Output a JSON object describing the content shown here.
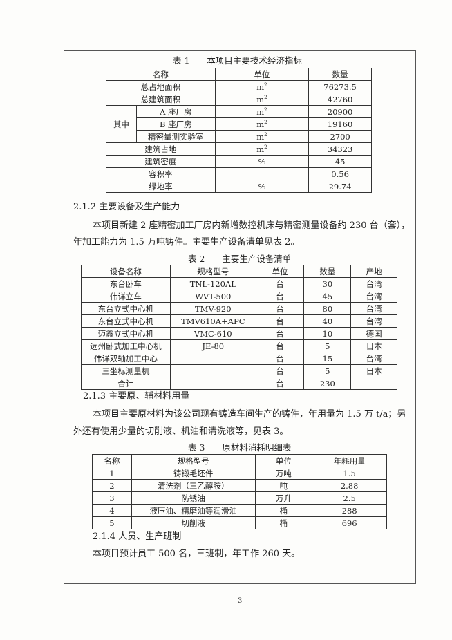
{
  "table1": {
    "caption": "表 1　　本项目主要技术经济指标",
    "headers": [
      "名称",
      "单位",
      "数量"
    ],
    "rows": [
      {
        "name": "总占地面积",
        "unit": "m",
        "sup": "2",
        "value": "76273.5"
      },
      {
        "name": "总建筑面积",
        "unit": "m",
        "sup": "2",
        "value": "42760"
      },
      {
        "group": "其中",
        "name": "A 座厂房",
        "unit": "m",
        "sup": "2",
        "value": "20900"
      },
      {
        "name": "B 座厂房",
        "unit": "m",
        "sup": "2",
        "value": "19160"
      },
      {
        "name": "精密量测实验室",
        "unit": "m",
        "sup": "2",
        "value": "2700"
      },
      {
        "name": "建筑占地",
        "unit": "m",
        "sup": "2",
        "value": "34323"
      },
      {
        "name": "建筑密度",
        "unit": "%",
        "value": "45"
      },
      {
        "name": "容积率",
        "unit": "",
        "value": "0.56"
      },
      {
        "name": "绿地率",
        "unit": "%",
        "value": "29.74"
      }
    ]
  },
  "section212": {
    "heading": "2.1.2 主要设备及生产能力",
    "para_line1": "本项目新建 2 座精密加工厂房内新增数控机床与精密测量设备约 230 台（套），",
    "para_line2": "年加工能力为 1.5 万吨铸件。主要生产设备清单见表 2。"
  },
  "table2": {
    "caption": "表 2　　主要生产设备清单",
    "headers": [
      "设备名称",
      "规格型号",
      "单位",
      "数量",
      "产地"
    ],
    "rows": [
      [
        "东台卧车",
        "TNL-120AL",
        "台",
        "30",
        "台湾"
      ],
      [
        "伟详立车",
        "WVT-500",
        "台",
        "45",
        "台湾"
      ],
      [
        "东台立式中心机",
        "TMV-920",
        "台",
        "80",
        "台湾"
      ],
      [
        "东台立式中心机",
        "TMV610A+APC",
        "台",
        "40",
        "台湾"
      ],
      [
        "迈鑫立式中心机",
        "VMC-610",
        "台",
        "10",
        "德国"
      ],
      [
        "远州卧式加工中心机",
        "JE-80",
        "台",
        "5",
        "日本"
      ],
      [
        "伟详双轴加工中心",
        "",
        "台",
        "15",
        "台湾"
      ],
      [
        "三坐标测量机",
        "",
        "台",
        "5",
        "日本"
      ],
      [
        "合计",
        "",
        "台",
        "230",
        ""
      ]
    ]
  },
  "section213": {
    "heading": "2.1.3 主要原、辅材料用量",
    "para_line1": "本项目主要原材料为该公司现有铸造车间生产的铸件，年用量为 1.5 万 t/a；另",
    "para_line2": "外还有使用少量的切削液、机油和清洗液等，见表 3。"
  },
  "table3": {
    "caption": "表 3　　原材料消耗明细表",
    "headers": [
      "名称",
      "规格型号",
      "单位",
      "年耗用量"
    ],
    "rows": [
      [
        "1",
        "铸锻毛坯件",
        "万吨",
        "1.5"
      ],
      [
        "2",
        "清洗剂（三乙醇胺）",
        "吨",
        "2.88"
      ],
      [
        "3",
        "防锈油",
        "万升",
        "2.5"
      ],
      [
        "4",
        "液压油、精磨油等润滑油",
        "桶",
        "288"
      ],
      [
        "5",
        "切削液",
        "桶",
        "696"
      ]
    ]
  },
  "section214": {
    "heading": "2.1.4 人员、生产班制",
    "para": "本项目预计员工 500 名，三班制，年工作 260 天。"
  },
  "page_number": "3"
}
